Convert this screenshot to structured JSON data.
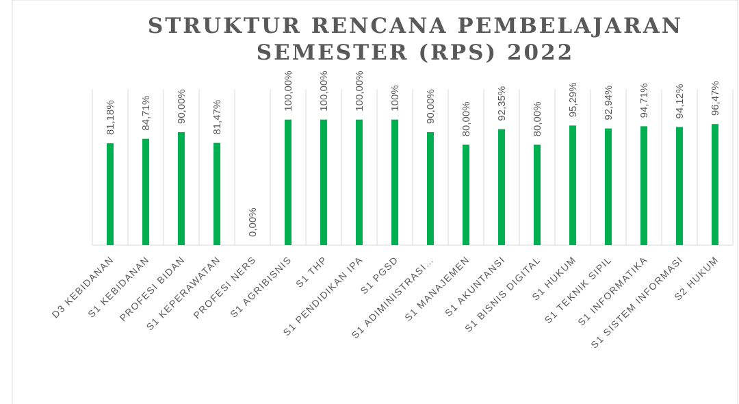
{
  "chart_data": {
    "type": "bar",
    "title": [
      "STRUKTUR RENCANA PEMBELAJARAN",
      "SEMESTER (RPS) 2022"
    ],
    "categories": [
      "D3 KEBIDANAN",
      "S1 KEBIDANAN",
      "PROFESI BIDAN",
      "S1 KEPERAWATAN",
      "PROFESI NERS",
      "S1 AGRIBISNIS",
      "S1 THP",
      "S1 PENDIDIKAN IPA",
      "S1 PGSD",
      "S1 ADIMINISTRASI…",
      "S1 MANAJEMEN",
      "S1 AKUNTANSI",
      "S1 BISNIS DIGITAL",
      "S1 HUKUM",
      "S1 TEKNIK SIPIL",
      "S1 INFORMATIKA",
      "S1 SISTEM INFORMASI",
      "S2 HUKUM"
    ],
    "values": [
      81.18,
      84.71,
      90.0,
      81.47,
      0,
      100,
      100,
      100,
      100,
      90.0,
      80.0,
      92.35,
      80.0,
      95.29,
      92.94,
      94.71,
      94.12,
      96.47
    ],
    "value_labels": [
      "81,18%",
      "84,71%",
      "90,00%",
      "81,47%",
      "0,00%",
      "100,00%",
      "100,00%",
      "100,00%",
      "100%",
      "90,00%",
      "80,00%",
      "92,35%",
      "80,00%",
      "95,29%",
      "92,94%",
      "94,71%",
      "94,12%",
      "96,47%"
    ],
    "color": "#00b050",
    "ylim": [
      0,
      120
    ]
  }
}
